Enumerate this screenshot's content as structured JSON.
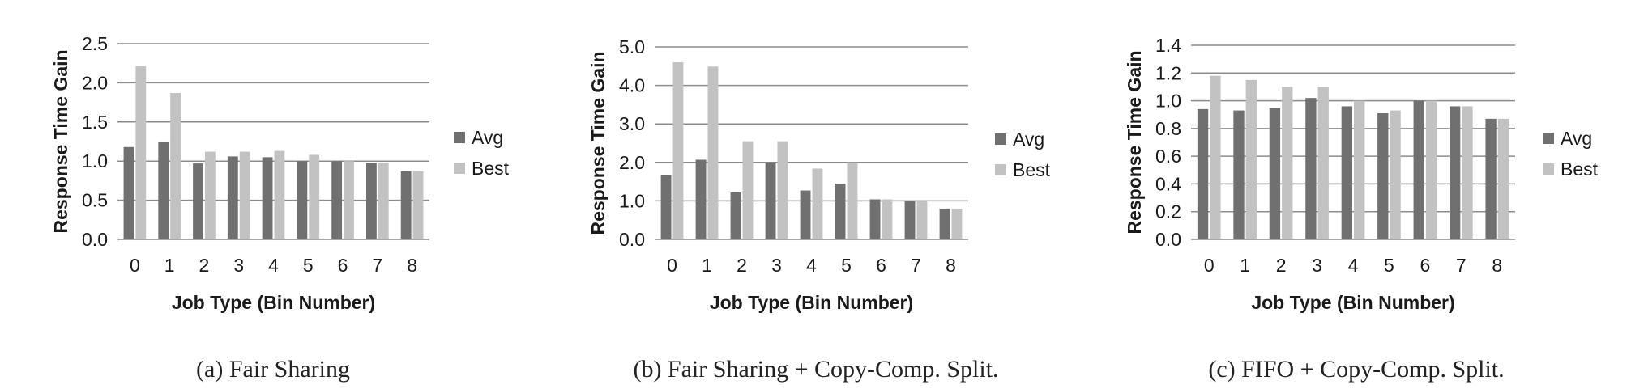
{
  "colors": {
    "avg": "#707070",
    "best": "#c2c2c2",
    "grid": "#8c8c8c",
    "text": "#1a1a1a"
  },
  "chart_data": [
    {
      "type": "bar",
      "caption": "(a) Fair Sharing",
      "ylabel": "Response Time Gain",
      "xlabel": "Job Type (Bin Number)",
      "categories": [
        "0",
        "1",
        "2",
        "3",
        "4",
        "5",
        "6",
        "7",
        "8"
      ],
      "ylim": [
        0,
        2.5
      ],
      "yticks": [
        "0.0",
        "0.5",
        "1.0",
        "1.5",
        "2.0",
        "2.5"
      ],
      "grid": true,
      "legend_position": "right",
      "series": [
        {
          "name": "Avg",
          "values": [
            1.18,
            1.24,
            0.97,
            1.06,
            1.05,
            1.0,
            1.0,
            0.98,
            0.87
          ]
        },
        {
          "name": "Best",
          "values": [
            2.21,
            1.87,
            1.12,
            1.12,
            1.13,
            1.08,
            1.0,
            0.98,
            0.87
          ]
        }
      ]
    },
    {
      "type": "bar",
      "caption": "(b) Fair Sharing + Copy-Comp. Split.",
      "ylabel": "Response Time Gain",
      "xlabel": "Job Type (Bin Number)",
      "categories": [
        "0",
        "1",
        "2",
        "3",
        "4",
        "5",
        "6",
        "7",
        "8"
      ],
      "ylim": [
        0,
        5.0
      ],
      "yticks": [
        "0.0",
        "1.0",
        "2.0",
        "3.0",
        "4.0",
        "5.0"
      ],
      "grid": true,
      "legend_position": "right",
      "series": [
        {
          "name": "Avg",
          "values": [
            1.67,
            2.07,
            1.22,
            2.0,
            1.27,
            1.45,
            1.04,
            1.0,
            0.8
          ]
        },
        {
          "name": "Best",
          "values": [
            4.6,
            4.49,
            2.55,
            2.55,
            1.84,
            2.0,
            1.04,
            1.0,
            0.8
          ]
        }
      ]
    },
    {
      "type": "bar",
      "caption": "(c) FIFO + Copy-Comp. Split.",
      "ylabel": "Response Time Gain",
      "xlabel": "Job Type (Bin Number)",
      "categories": [
        "0",
        "1",
        "2",
        "3",
        "4",
        "5",
        "6",
        "7",
        "8"
      ],
      "ylim": [
        0,
        1.4
      ],
      "yticks": [
        "0.0",
        "0.2",
        "0.4",
        "0.6",
        "0.8",
        "1.0",
        "1.2",
        "1.4"
      ],
      "grid": true,
      "legend_position": "right",
      "series": [
        {
          "name": "Avg",
          "values": [
            0.94,
            0.93,
            0.95,
            1.02,
            0.96,
            0.91,
            1.0,
            0.96,
            0.87
          ]
        },
        {
          "name": "Best",
          "values": [
            1.18,
            1.15,
            1.1,
            1.1,
            1.0,
            0.93,
            1.0,
            0.96,
            0.87
          ]
        }
      ]
    }
  ]
}
